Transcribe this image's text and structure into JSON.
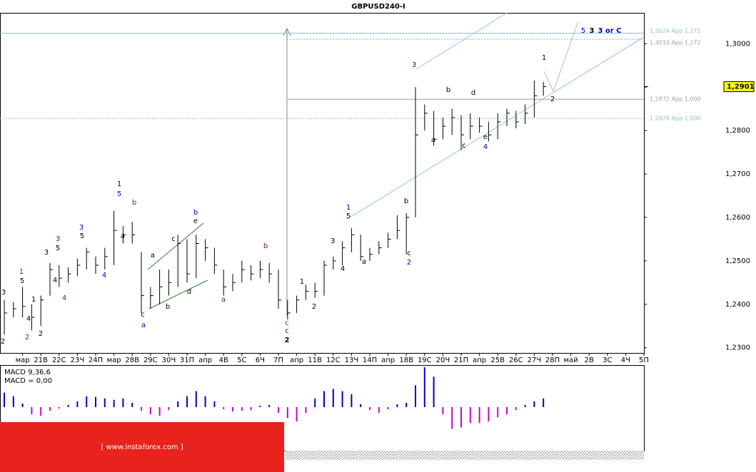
{
  "chart_data": {
    "type": "ohlc",
    "title": "GBPUSD240-I",
    "categories": [
      null,
      null,
      "мар",
      null,
      "21В",
      null,
      "22С",
      null,
      "23Ч",
      null,
      "24П",
      null,
      "мар",
      null,
      "28В",
      null,
      "29С",
      null,
      "30Ч",
      null,
      "31П",
      null,
      "апр",
      null,
      "4В",
      null,
      "5С",
      null,
      "6Ч",
      null,
      "7П",
      null,
      "апр",
      null,
      "11В",
      null,
      "12С",
      null,
      "13Ч",
      null,
      "14П",
      null,
      "апр",
      null,
      "18В",
      null,
      "19С",
      null,
      "20Ч",
      null,
      "21П",
      null,
      "апр",
      null,
      "25В",
      null,
      "26С",
      null,
      "27Ч",
      null,
      "28П",
      null,
      "май",
      null,
      "2В",
      null,
      "3С",
      null,
      "4Ч",
      null,
      "5П"
    ],
    "high": [
      1.241,
      1.2405,
      1.244,
      1.24,
      1.242,
      1.2495,
      1.249,
      1.2485,
      1.2505,
      1.253,
      1.251,
      1.253,
      1.2615,
      1.258,
      1.259,
      1.252,
      1.244,
      1.248,
      1.248,
      1.256,
      1.255,
      1.256,
      1.255,
      1.253,
      1.248,
      1.247,
      1.25,
      1.249,
      1.25,
      1.2495,
      1.248,
      1.241,
      1.242,
      1.2445,
      1.245,
      1.25,
      1.251,
      1.2545,
      1.2575,
      1.256,
      1.253,
      1.2545,
      1.2565,
      1.2605,
      1.261,
      1.29,
      1.286,
      1.2845,
      1.283,
      1.285,
      1.2835,
      1.284,
      1.283,
      1.282,
      1.284,
      1.285,
      1.2845,
      1.286,
      1.2915,
      1.2912,
      null,
      null,
      null,
      null,
      null,
      null,
      null,
      null,
      null,
      null,
      null
    ],
    "low": [
      1.233,
      1.237,
      1.237,
      1.234,
      1.235,
      1.242,
      1.244,
      1.245,
      1.2465,
      1.248,
      1.247,
      1.248,
      1.249,
      1.254,
      1.254,
      1.238,
      1.239,
      1.24,
      1.242,
      1.244,
      1.245,
      1.246,
      1.25,
      1.247,
      1.242,
      1.243,
      1.245,
      1.2455,
      1.246,
      1.245,
      1.239,
      1.2365,
      1.238,
      1.241,
      1.2415,
      1.242,
      1.248,
      1.249,
      1.252,
      1.25,
      1.25,
      1.2515,
      1.253,
      1.255,
      1.2515,
      1.26,
      1.28,
      1.2765,
      1.278,
      1.279,
      1.2755,
      1.278,
      1.2795,
      1.2775,
      1.278,
      1.281,
      1.2805,
      1.2815,
      1.283,
      1.288,
      null,
      null,
      null,
      null,
      null,
      null,
      null,
      null,
      null,
      null,
      null
    ],
    "close": [
      1.238,
      1.239,
      1.2395,
      1.237,
      1.241,
      1.248,
      1.246,
      1.247,
      1.249,
      1.252,
      1.249,
      1.251,
      1.257,
      1.256,
      1.256,
      1.242,
      1.242,
      1.244,
      1.245,
      1.254,
      1.247,
      1.254,
      1.253,
      1.249,
      1.244,
      1.245,
      1.248,
      1.247,
      1.248,
      1.247,
      1.241,
      1.238,
      1.241,
      1.243,
      1.243,
      1.249,
      1.25,
      1.253,
      1.256,
      1.251,
      1.2515,
      1.253,
      1.255,
      1.257,
      1.26,
      1.279,
      1.284,
      1.278,
      1.281,
      1.283,
      1.279,
      1.281,
      1.281,
      1.279,
      1.282,
      1.284,
      1.282,
      1.284,
      1.288,
      1.2901,
      null,
      null,
      null,
      null,
      null,
      null,
      null,
      null,
      null,
      null,
      null
    ],
    "color": "#000000",
    "ylim": [
      1.2288,
      1.3071
    ],
    "yticks": [
      {
        "value": 1.23,
        "label": "1,2300"
      },
      {
        "value": 1.24,
        "label": "1,2400"
      },
      {
        "value": 1.25,
        "label": "1,2500"
      },
      {
        "value": 1.26,
        "label": "1,2600"
      },
      {
        "value": 1.27,
        "label": "1,2700"
      },
      {
        "value": 1.28,
        "label": "1,2800"
      },
      {
        "value": 1.29,
        "label": "1,2900"
      },
      {
        "value": 1.3,
        "label": "1,3000"
      }
    ],
    "last_price": {
      "value": 1.2901,
      "label": "1,2901"
    },
    "levels": [
      {
        "value": 1.3024,
        "label": "1,3024 App 1,272",
        "color": "#8fbfd0"
      },
      {
        "value": 1.301,
        "label": "1,3010 App 1,272",
        "color": "#a0a0a0"
      },
      {
        "value": 1.2872,
        "label": "1,2872 App 1,000",
        "color": "#a0a0a0"
      },
      {
        "value": 1.2828,
        "label": "1,2828 App 1,000",
        "color": "#8fbfd0"
      }
    ],
    "annotations": [
      {
        "text": "3",
        "color": "#000000"
      },
      {
        "text": "2",
        "color": "#000000"
      },
      {
        "text": "1",
        "color": "#8b1a1a"
      },
      {
        "text": "5",
        "color": "#000000"
      },
      {
        "text": "4",
        "color": "#000000"
      },
      {
        "text": "2",
        "color": "#8b1a1a"
      },
      {
        "text": "1",
        "color": "#000000"
      },
      {
        "text": "2",
        "color": "#000000"
      },
      {
        "text": "3",
        "color": "#000000"
      },
      {
        "text": "4",
        "color": "#000000"
      },
      {
        "text": "3",
        "color": "#8b1a1a"
      },
      {
        "text": "5",
        "color": "#000000"
      },
      {
        "text": "4",
        "color": "#8b1a1a"
      },
      {
        "text": "3",
        "color": "#0000cc"
      },
      {
        "text": "5",
        "color": "#000000"
      },
      {
        "text": "4",
        "color": "#0000cc"
      },
      {
        "text": "1",
        "color": "#000000"
      },
      {
        "text": "5",
        "color": "#0000cc"
      },
      {
        "text": "a",
        "color": "#000000"
      },
      {
        "text": "b",
        "color": "#8b1a1a"
      },
      {
        "text": "c",
        "color": "#000000"
      },
      {
        "text": "a",
        "color": "#0000cc"
      },
      {
        "text": "a",
        "color": "#000000"
      },
      {
        "text": "b",
        "color": "#000000"
      },
      {
        "text": "c",
        "color": "#000000"
      },
      {
        "text": "b",
        "color": "#0000cc"
      },
      {
        "text": "e",
        "color": "#000000"
      },
      {
        "text": "d",
        "color": "#000000"
      },
      {
        "text": "a",
        "color": "#8b1a1a"
      },
      {
        "text": "b",
        "color": "#8b1a1a"
      },
      {
        "text": "c",
        "color": "#8b1a1a"
      },
      {
        "text": "c",
        "color": "#0000cc"
      },
      {
        "text": "2",
        "color": "#000000"
      },
      {
        "text": "1",
        "color": "#000000"
      },
      {
        "text": "2",
        "color": "#000000"
      },
      {
        "text": "3",
        "color": "#000000"
      },
      {
        "text": "4",
        "color": "#000000"
      },
      {
        "text": "1",
        "color": "#0000cc"
      },
      {
        "text": "5",
        "color": "#000000"
      },
      {
        "text": "a",
        "color": "#000000"
      },
      {
        "text": "b",
        "color": "#000000"
      },
      {
        "text": "c",
        "color": "#000000"
      },
      {
        "text": "2",
        "color": "#0000cc"
      },
      {
        "text": "3",
        "color": "#0000cc"
      },
      {
        "text": "a",
        "color": "#000000"
      },
      {
        "text": "b",
        "color": "#000000"
      },
      {
        "text": "c",
        "color": "#000000"
      },
      {
        "text": "d",
        "color": "#000000"
      },
      {
        "text": "e",
        "color": "#000000"
      },
      {
        "text": "4",
        "color": "#0000cc"
      },
      {
        "text": "1",
        "color": "#000000"
      },
      {
        "text": "2",
        "color": "#000000"
      },
      {
        "text": "5",
        "color": "#0000cc"
      },
      {
        "text": "3",
        "color": "#000000"
      },
      {
        "text": "3 or C",
        "color": "#0000cc"
      }
    ],
    "macd": {
      "label": "MACD 9,36,6",
      "value_label": "MACD = 0,00",
      "ylim": [
        -0.006,
        0.0057
      ],
      "positive_color": "#0000cc",
      "negative_color": "#cc00cc",
      "values": [
        0.002,
        0.0015,
        0.0005,
        -0.001,
        -0.0012,
        -0.0005,
        -0.0002,
        0.0003,
        0.0008,
        0.0015,
        0.0014,
        0.0012,
        0.001,
        0.0012,
        0.0006,
        -0.0005,
        -0.001,
        -0.0012,
        -0.0004,
        0.0008,
        0.0015,
        0.0022,
        0.0015,
        0.0008,
        -0.0003,
        -0.0006,
        -0.0005,
        -0.0004,
        0.0002,
        0.0003,
        -0.0008,
        -0.0015,
        -0.002,
        -0.0008,
        0.0012,
        0.0022,
        0.0025,
        0.0022,
        0.0018,
        0.0004,
        -0.0004,
        -0.0008,
        -0.0003,
        0.0004,
        0.0006,
        0.003,
        0.0055,
        0.0042,
        -0.001,
        -0.003,
        -0.0028,
        -0.0022,
        -0.0022,
        -0.002,
        -0.0014,
        -0.001,
        -0.0004,
        0.0003,
        0.0008,
        0.0012,
        null,
        null,
        null,
        null,
        null,
        null,
        null,
        null,
        null,
        null,
        null
      ]
    },
    "brand": "[  www.instaforex.com ]"
  }
}
